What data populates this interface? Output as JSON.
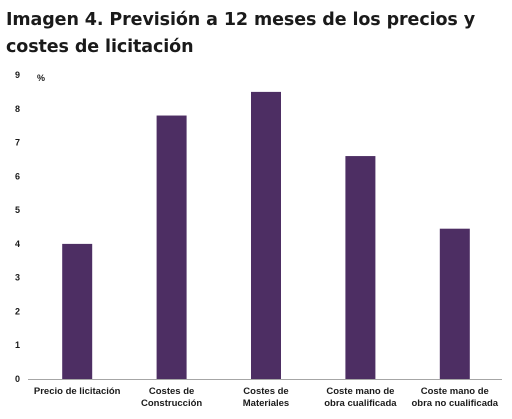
{
  "chart_data": {
    "type": "bar",
    "title": "Imagen 4. Previsión a 12 meses de los precios y costes de licitación",
    "unit_label": "%",
    "xlabel": "",
    "ylabel": "",
    "ylim": [
      0,
      9
    ],
    "yticks": [
      "0",
      "1",
      "2",
      "3",
      "4",
      "5",
      "6",
      "7",
      "8",
      "9"
    ],
    "grid": false,
    "legend": "none",
    "bar_color": "#4d2e63",
    "axis_color": "#a6a6a6",
    "categories": [
      [
        "Precio de licitación"
      ],
      [
        "Costes de",
        "Construcción"
      ],
      [
        "Costes de",
        "Materiales"
      ],
      [
        "Coste mano de",
        "obra cualificada"
      ],
      [
        "Coste mano de",
        "obra no cualificada"
      ]
    ],
    "values": [
      4.0,
      7.8,
      8.5,
      6.6,
      4.45
    ]
  }
}
